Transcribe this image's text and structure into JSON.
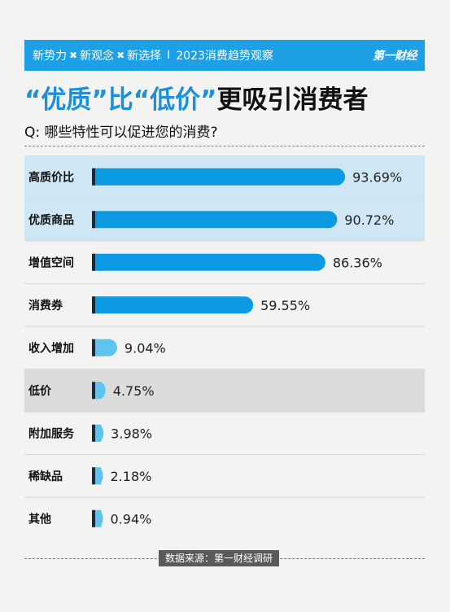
{
  "banner": {
    "tags": [
      "新势力",
      "新观念",
      "新选择"
    ],
    "separator": "I",
    "series_title": "2023消费趋势观察",
    "logo": "第一财经"
  },
  "headline": {
    "part1": "“优质”比“低价”",
    "part2": "更吸引消费者"
  },
  "question": "Q: 哪些特性可以促进您的消费?",
  "source": "数据来源：第一财经调研",
  "colors": {
    "bar": "#0c9be3",
    "bar_small": "#5cc4ef",
    "marker": "#1b2a3a",
    "highlight_top": "#cfe6f4",
    "highlight_low": "#dcdcdc"
  },
  "chart_data": {
    "type": "bar",
    "orientation": "horizontal",
    "categories": [
      "高质价比",
      "优质商品",
      "增值空间",
      "消费券",
      "收入增加",
      "低价",
      "附加服务",
      "稀缺品",
      "其他"
    ],
    "values": [
      93.69,
      90.72,
      86.36,
      59.55,
      9.04,
      4.75,
      3.98,
      2.18,
      0.94
    ],
    "value_labels": [
      "93.69%",
      "90.72%",
      "86.36%",
      "59.55%",
      "9.04%",
      "4.75%",
      "3.98%",
      "2.18%",
      "0.94%"
    ],
    "unit": "%",
    "highlighted": [
      "高质价比",
      "优质商品",
      "低价"
    ],
    "xlim": [
      0,
      100
    ]
  }
}
